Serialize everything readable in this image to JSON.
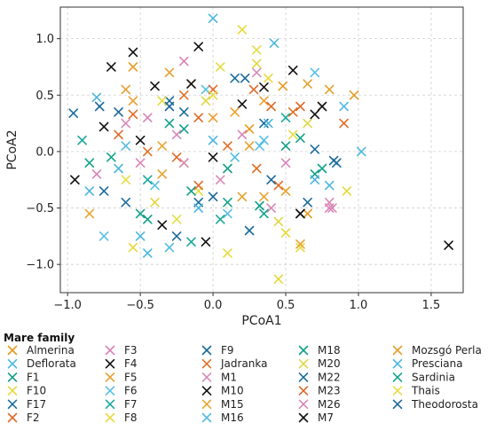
{
  "chart_data": {
    "type": "scatter",
    "xlabel": "PCoA1",
    "ylabel": "PCoA2",
    "xlim": [
      -1.05,
      1.72
    ],
    "ylim": [
      -1.25,
      1.28
    ],
    "xticks": [
      -1.0,
      -0.5,
      0.0,
      0.5,
      1.0,
      1.5
    ],
    "yticks": [
      -1.0,
      -0.5,
      0.0,
      0.5,
      1.0
    ],
    "xtick_labels": [
      "−1.0",
      "−0.5",
      "0.0",
      "0.5",
      "1.0",
      "1.5"
    ],
    "ytick_labels": [
      "−1.0",
      "−0.5",
      "0.0",
      "0.5",
      "1.0"
    ],
    "grid": true,
    "marker": "x",
    "legend": {
      "title": "Mare family",
      "placement": "below",
      "columns": 5
    },
    "series": [
      {
        "name": "Almerina",
        "color": "#e69a20",
        "points": [
          [
            -0.55,
            0.75
          ],
          [
            -0.15,
            0.6
          ],
          [
            0.48,
            0.58
          ],
          [
            0.97,
            0.5
          ],
          [
            0.65,
            -0.55
          ],
          [
            -0.2,
            -0.1
          ],
          [
            0.25,
            0.2
          ]
        ]
      },
      {
        "name": "Deflorata",
        "color": "#4ab8de",
        "points": [
          [
            -0.8,
            0.48
          ],
          [
            -0.65,
            -0.15
          ],
          [
            0.0,
            1.18
          ],
          [
            0.42,
            0.96
          ],
          [
            -0.45,
            -0.9
          ],
          [
            0.8,
            -0.3
          ],
          [
            1.02,
            0.0
          ]
        ]
      },
      {
        "name": "F1",
        "color": "#10a08a",
        "points": [
          [
            -0.85,
            -0.1
          ],
          [
            -0.5,
            -0.55
          ],
          [
            0.32,
            -0.48
          ],
          [
            0.6,
            0.12
          ],
          [
            -0.2,
            0.2
          ]
        ]
      },
      {
        "name": "F10",
        "color": "#e8d838",
        "points": [
          [
            0.2,
            1.08
          ],
          [
            -0.55,
            -0.85
          ],
          [
            0.5,
            -0.72
          ],
          [
            0.92,
            -0.35
          ],
          [
            0.45,
            -1.13
          ]
        ]
      },
      {
        "name": "F17",
        "color": "#1a6e9e",
        "points": [
          [
            -0.96,
            0.34
          ],
          [
            -0.3,
            0.45
          ],
          [
            0.15,
            0.65
          ],
          [
            0.85,
            -0.1
          ],
          [
            -0.1,
            -0.45
          ]
        ]
      },
      {
        "name": "F2",
        "color": "#e06a28",
        "points": [
          [
            -0.55,
            0.33
          ],
          [
            -0.1,
            0.3
          ],
          [
            0.28,
            0.55
          ],
          [
            0.6,
            0.4
          ],
          [
            -0.25,
            -0.05
          ],
          [
            0.45,
            -0.3
          ]
        ]
      },
      {
        "name": "F3",
        "color": "#d883b8",
        "points": [
          [
            -0.8,
            -0.2
          ],
          [
            -0.2,
            0.8
          ],
          [
            0.5,
            -0.1
          ],
          [
            0.8,
            -0.5
          ],
          [
            -0.45,
            0.3
          ]
        ]
      },
      {
        "name": "F4",
        "color": "#111111",
        "points": [
          [
            -0.55,
            0.88
          ],
          [
            -0.1,
            0.93
          ],
          [
            0.55,
            0.72
          ],
          [
            -0.95,
            -0.25
          ],
          [
            -0.35,
            -0.65
          ],
          [
            0.6,
            -0.55
          ],
          [
            0.0,
            -0.05
          ],
          [
            1.62,
            -0.83
          ]
        ]
      },
      {
        "name": "F5",
        "color": "#e6a030",
        "points": [
          [
            -0.6,
            0.55
          ],
          [
            0.0,
            0.3
          ],
          [
            0.2,
            -0.4
          ],
          [
            0.65,
            0.6
          ],
          [
            -0.3,
            0.7
          ],
          [
            0.35,
            0.45
          ]
        ]
      },
      {
        "name": "F6",
        "color": "#58c0e6",
        "points": [
          [
            -0.75,
            -0.75
          ],
          [
            -0.05,
            0.55
          ],
          [
            0.32,
            0.05
          ],
          [
            0.7,
            0.7
          ],
          [
            -0.4,
            -0.3
          ],
          [
            0.1,
            -0.55
          ]
        ]
      },
      {
        "name": "F7",
        "color": "#18a89a",
        "points": [
          [
            -0.9,
            0.1
          ],
          [
            -0.45,
            -0.25
          ],
          [
            0.05,
            -0.6
          ],
          [
            0.5,
            0.3
          ],
          [
            -0.15,
            -0.8
          ]
        ]
      },
      {
        "name": "F8",
        "color": "#e8da40",
        "points": [
          [
            -0.35,
            0.45
          ],
          [
            0.05,
            0.75
          ],
          [
            0.38,
            0.65
          ],
          [
            -0.1,
            -0.35
          ],
          [
            0.6,
            -0.85
          ],
          [
            0.1,
            -0.9
          ]
        ]
      },
      {
        "name": "F9",
        "color": "#1c6a9a",
        "points": [
          [
            -0.78,
            0.4
          ],
          [
            0.22,
            0.65
          ],
          [
            0.65,
            -0.45
          ],
          [
            -0.25,
            -0.75
          ],
          [
            0.35,
            0.25
          ]
        ]
      },
      {
        "name": "Jadranka",
        "color": "#e07028",
        "points": [
          [
            -0.45,
            0.0
          ],
          [
            0.1,
            0.05
          ],
          [
            0.55,
            0.35
          ],
          [
            -0.2,
            0.5
          ],
          [
            0.3,
            -0.15
          ]
        ]
      },
      {
        "name": "M1",
        "color": "#d88ab8",
        "points": [
          [
            -0.2,
            -0.1
          ],
          [
            0.3,
            0.7
          ],
          [
            0.8,
            -0.45
          ],
          [
            -0.6,
            0.25
          ],
          [
            0.05,
            -0.25
          ]
        ]
      },
      {
        "name": "M10",
        "color": "#111111",
        "points": [
          [
            -0.7,
            0.75
          ],
          [
            -0.05,
            -0.8
          ],
          [
            0.75,
            0.4
          ],
          [
            -0.4,
            0.58
          ],
          [
            0.2,
            0.42
          ]
        ]
      },
      {
        "name": "M15",
        "color": "#e6a42e",
        "points": [
          [
            -0.85,
            -0.55
          ],
          [
            0.35,
            -0.4
          ],
          [
            0.6,
            -0.82
          ],
          [
            -0.35,
            0.05
          ],
          [
            0.15,
            0.35
          ]
        ]
      },
      {
        "name": "M16",
        "color": "#54bce2",
        "points": [
          [
            -0.3,
            -0.85
          ],
          [
            0.35,
            0.1
          ],
          [
            0.9,
            0.4
          ],
          [
            -0.6,
            0.05
          ],
          [
            0.15,
            -0.05
          ]
        ]
      },
      {
        "name": "M18",
        "color": "#10a088",
        "points": [
          [
            -0.45,
            -0.6
          ],
          [
            0.1,
            -0.15
          ],
          [
            0.7,
            -0.2
          ],
          [
            -0.15,
            -0.35
          ],
          [
            0.5,
            0.05
          ]
        ]
      },
      {
        "name": "M20",
        "color": "#e2d644",
        "points": [
          [
            0.3,
            0.78
          ],
          [
            -0.4,
            -0.45
          ],
          [
            0.45,
            -0.62
          ],
          [
            -0.05,
            0.45
          ],
          [
            0.65,
            0.25
          ]
        ]
      },
      {
        "name": "M22",
        "color": "#1b6c9c",
        "points": [
          [
            -0.6,
            -0.45
          ],
          [
            -0.2,
            0.35
          ],
          [
            0.7,
            0.02
          ],
          [
            0.25,
            -0.7
          ],
          [
            -0.75,
            -0.35
          ]
        ]
      },
      {
        "name": "M23",
        "color": "#e06a2a",
        "points": [
          [
            -0.65,
            0.15
          ],
          [
            0.0,
            0.55
          ],
          [
            0.4,
            0.4
          ],
          [
            0.9,
            0.25
          ],
          [
            -0.1,
            -0.3
          ]
        ]
      },
      {
        "name": "M26",
        "color": "#d887b8",
        "points": [
          [
            -0.25,
            0.15
          ],
          [
            0.4,
            -0.5
          ],
          [
            0.82,
            -0.5
          ],
          [
            0.2,
            0.15
          ],
          [
            -0.5,
            -0.1
          ]
        ]
      },
      {
        "name": "M7",
        "color": "#111111",
        "points": [
          [
            -0.75,
            0.22
          ],
          [
            -0.5,
            0.1
          ],
          [
            0.35,
            0.57
          ],
          [
            0.7,
            0.33
          ],
          [
            0.6,
            -0.55
          ],
          [
            -0.15,
            0.6
          ]
        ]
      },
      {
        "name": "Mozsgó Perla",
        "color": "#e6a02c",
        "points": [
          [
            -0.55,
            0.45
          ],
          [
            0.25,
            0.05
          ],
          [
            0.5,
            -0.35
          ],
          [
            0.8,
            0.55
          ],
          [
            -0.35,
            -0.2
          ]
        ]
      },
      {
        "name": "Presciana",
        "color": "#4ab6de",
        "points": [
          [
            -0.85,
            -0.35
          ],
          [
            -0.1,
            -0.5
          ],
          [
            0.38,
            0.25
          ],
          [
            0.7,
            -0.25
          ],
          [
            -0.5,
            -0.75
          ],
          [
            0.0,
            0.1
          ]
        ]
      },
      {
        "name": "Sardinia",
        "color": "#12a48c",
        "points": [
          [
            -0.7,
            -0.05
          ],
          [
            0.1,
            -0.45
          ],
          [
            0.75,
            -0.15
          ],
          [
            -0.3,
            0.25
          ],
          [
            0.35,
            -0.55
          ]
        ]
      },
      {
        "name": "Thais",
        "color": "#e6dc46",
        "points": [
          [
            -0.25,
            -0.6
          ],
          [
            0.0,
            0.5
          ],
          [
            0.55,
            0.15
          ],
          [
            0.3,
            0.9
          ],
          [
            -0.6,
            -0.25
          ]
        ]
      },
      {
        "name": "Theodorosta",
        "color": "#1b6898",
        "points": [
          [
            -0.65,
            0.35
          ],
          [
            0.0,
            -0.4
          ],
          [
            0.4,
            -0.25
          ],
          [
            0.83,
            -0.08
          ],
          [
            -0.3,
            0.4
          ]
        ]
      }
    ]
  }
}
